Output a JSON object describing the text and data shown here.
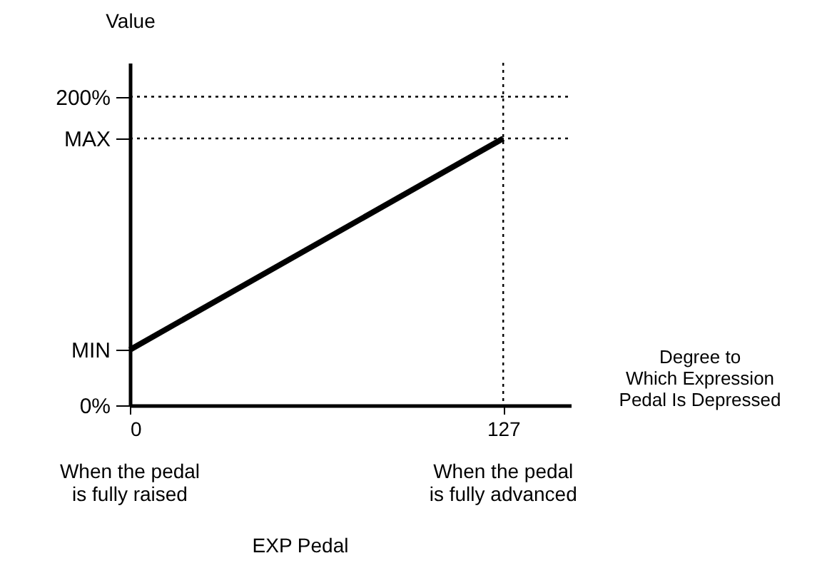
{
  "chart_data": {
    "type": "line",
    "xlabel": "Degree to\nWhich Expression\nPedal Is Depressed",
    "ylabel": "Value",
    "x": [
      0,
      127
    ],
    "values": [
      36,
      173
    ],
    "color": "#000000",
    "xlim": [
      0,
      150
    ],
    "ylim": [
      0,
      222
    ],
    "xticks": [
      0,
      127
    ],
    "yticks": [
      {
        "value": 0,
        "label": "0%"
      },
      {
        "value": 36,
        "label": "MIN"
      },
      {
        "value": 173,
        "label": "MAX"
      },
      {
        "value": 200,
        "label": "200%"
      }
    ],
    "grid": false,
    "marker": "none",
    "line_style": "solid",
    "ref_lines": [
      {
        "axis": "y",
        "value": 200,
        "line_style": "dotted",
        "color": "#000000"
      },
      {
        "axis": "y",
        "value": 173,
        "line_style": "dotted",
        "color": "#000000"
      },
      {
        "axis": "x",
        "value": 127,
        "line_style": "dotted",
        "color": "#000000"
      }
    ],
    "annotations": [
      "When the pedal\nis fully raised",
      "When the pedal\nis fully advanced",
      "EXP Pedal"
    ]
  }
}
